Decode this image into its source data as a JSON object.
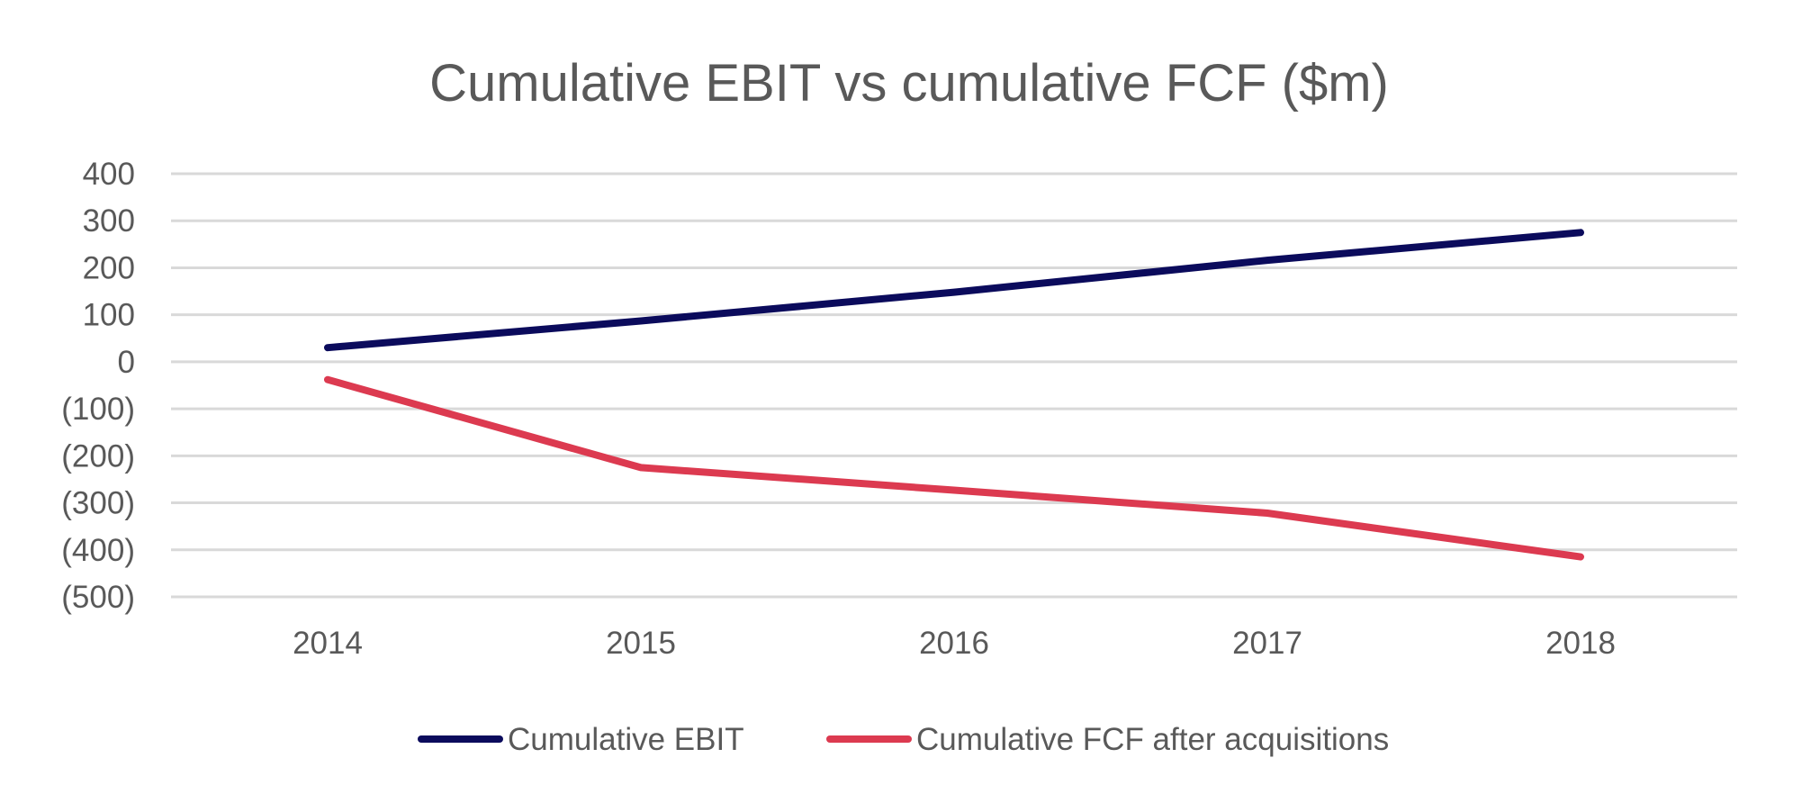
{
  "chart_data": {
    "type": "line",
    "title": "Cumulative EBIT vs cumulative FCF ($m)",
    "xlabel": "",
    "ylabel": "",
    "categories": [
      "2014",
      "2015",
      "2016",
      "2017",
      "2018"
    ],
    "y_ticks": [
      400,
      300,
      200,
      100,
      0,
      -100,
      -200,
      -300,
      -400,
      -500
    ],
    "y_tick_labels": [
      "400",
      "300",
      "200",
      "100",
      "0",
      "(100)",
      "(200)",
      "(300)",
      "(400)",
      "(500)"
    ],
    "ylim": [
      -500,
      400
    ],
    "grid": true,
    "legend_position": "bottom",
    "series": [
      {
        "name": "Cumulative EBIT",
        "color": "#0b0b5c",
        "values": [
          30,
          87,
          148,
          216,
          275
        ]
      },
      {
        "name": "Cumulative FCF after acquisitions",
        "color": "#dc3a50",
        "values": [
          -38,
          -225,
          -273,
          -322,
          -415
        ]
      }
    ]
  }
}
